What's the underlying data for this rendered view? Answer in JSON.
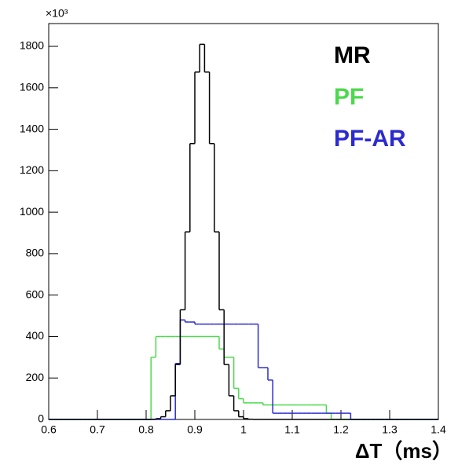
{
  "chart_data": {
    "type": "histogram",
    "y_multiplier": "×10³",
    "x_label": "ΔT（ms）",
    "bins": [
      0.6,
      0.61,
      0.62,
      0.63,
      0.64,
      0.65,
      0.66,
      0.67,
      0.68,
      0.69,
      0.7,
      0.71,
      0.72,
      0.73,
      0.74,
      0.75,
      0.76,
      0.77,
      0.78,
      0.79,
      0.8,
      0.81,
      0.82,
      0.83,
      0.84,
      0.85,
      0.86,
      0.87,
      0.88,
      0.89,
      0.9,
      0.91,
      0.92,
      0.93,
      0.94,
      0.95,
      0.96,
      0.97,
      0.98,
      0.99,
      1.0,
      1.01,
      1.02,
      1.03,
      1.04,
      1.05,
      1.06,
      1.07,
      1.08,
      1.09,
      1.1,
      1.11,
      1.12,
      1.13,
      1.14,
      1.15,
      1.16,
      1.17,
      1.18,
      1.19,
      1.2,
      1.21,
      1.22,
      1.23,
      1.24,
      1.25,
      1.26,
      1.27,
      1.28,
      1.29,
      1.3,
      1.31,
      1.32,
      1.33,
      1.34,
      1.35,
      1.36,
      1.37,
      1.38,
      1.39,
      1.4
    ],
    "series": [
      {
        "name": "MR",
        "color": "#000000",
        "values": [
          0,
          0,
          0,
          0,
          0,
          0,
          0,
          0,
          0,
          0,
          0,
          0,
          0,
          0,
          0,
          0,
          0,
          0,
          0,
          0,
          0,
          1,
          4,
          13,
          42,
          114,
          265,
          529,
          905,
          1331,
          1676,
          1810,
          1676,
          1331,
          905,
          529,
          265,
          114,
          42,
          13,
          4,
          1,
          0,
          0,
          0,
          0,
          0,
          0,
          0,
          0,
          0,
          0,
          0,
          0,
          0,
          0,
          0,
          0,
          0,
          0,
          0,
          0,
          0,
          0,
          0,
          0,
          0,
          0,
          0,
          0,
          0,
          0,
          0,
          0,
          0,
          0,
          0,
          0,
          0,
          0
        ]
      },
      {
        "name": "PF",
        "color": "#4cd94c",
        "values": [
          0,
          0,
          0,
          0,
          0,
          0,
          0,
          0,
          0,
          0,
          0,
          0,
          0,
          0,
          0,
          0,
          0,
          0,
          0,
          0,
          0,
          300,
          400,
          400,
          400,
          400,
          400,
          400,
          400,
          400,
          400,
          400,
          400,
          400,
          400,
          340,
          300,
          300,
          150,
          100,
          80,
          80,
          80,
          80,
          70,
          70,
          70,
          70,
          70,
          70,
          70,
          70,
          70,
          70,
          70,
          70,
          70,
          30,
          0,
          0,
          0,
          0,
          0,
          0,
          0,
          0,
          0,
          0,
          0,
          0,
          0,
          0,
          0,
          0,
          0,
          0,
          0,
          0,
          0,
          0
        ]
      },
      {
        "name": "PF-AR",
        "color": "#2b2bd0",
        "values": [
          0,
          0,
          0,
          0,
          0,
          0,
          0,
          0,
          0,
          0,
          0,
          0,
          0,
          0,
          0,
          0,
          0,
          0,
          0,
          0,
          0,
          0,
          0,
          0,
          0,
          0,
          270,
          480,
          470,
          470,
          460,
          460,
          460,
          460,
          460,
          460,
          460,
          460,
          460,
          460,
          460,
          460,
          460,
          250,
          250,
          190,
          30,
          30,
          30,
          30,
          30,
          30,
          30,
          30,
          30,
          30,
          30,
          30,
          30,
          30,
          30,
          30,
          0,
          0,
          0,
          0,
          0,
          0,
          0,
          0,
          0,
          0,
          0,
          0,
          0,
          0,
          0,
          0,
          0,
          0
        ]
      }
    ],
    "xlim": [
      0.6,
      1.4
    ],
    "ylim": [
      0,
      1910
    ],
    "xticks": [
      0.6,
      0.7,
      0.8,
      0.9,
      1,
      1.1,
      1.2,
      1.3,
      1.4
    ],
    "yticks": [
      0,
      200,
      400,
      600,
      800,
      1000,
      1200,
      1400,
      1600,
      1800
    ],
    "grid": false
  }
}
